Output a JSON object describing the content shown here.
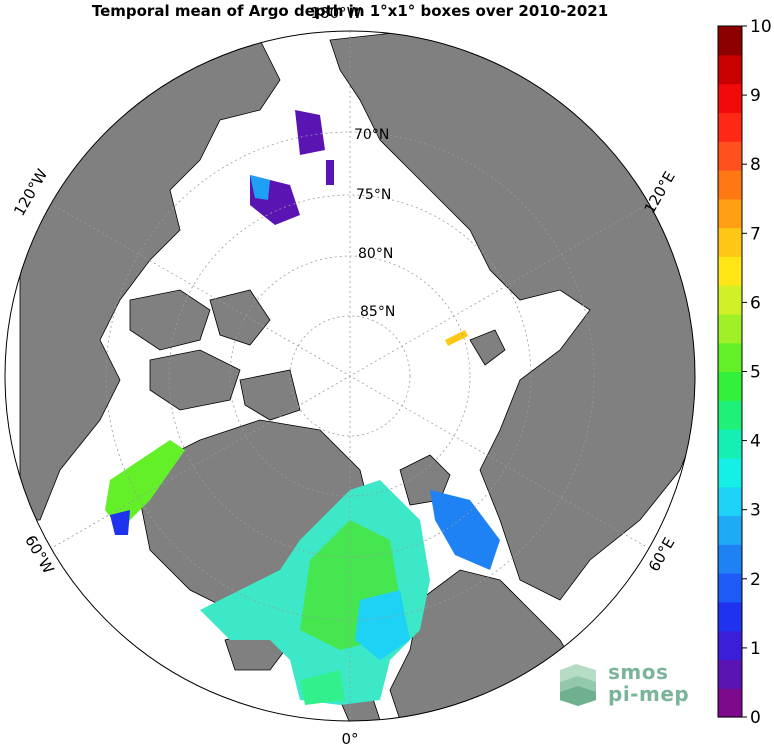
{
  "title": "Temporal mean of Argo depth in 1°x1° boxes over 2010-2021",
  "projection": "north-polar-stereographic",
  "meridian_labels": [
    {
      "id": "180w",
      "text": "180°W"
    },
    {
      "id": "120w",
      "text": "120°W"
    },
    {
      "id": "120e",
      "text": "120°E"
    },
    {
      "id": "60w",
      "text": "60°W"
    },
    {
      "id": "60e",
      "text": "60°E"
    },
    {
      "id": "0",
      "text": "0°"
    }
  ],
  "parallel_labels": [
    {
      "id": "70n",
      "text": "70°N"
    },
    {
      "id": "75n",
      "text": "75°N"
    },
    {
      "id": "80n",
      "text": "80°N"
    },
    {
      "id": "85n",
      "text": "85°N"
    }
  ],
  "colorbar": {
    "min": 0,
    "max": 10,
    "ticks": [
      "0",
      "1",
      "2",
      "3",
      "4",
      "5",
      "6",
      "7",
      "8",
      "9",
      "10"
    ],
    "colors": [
      "#7d0a8c",
      "#5a14b4",
      "#3a1ed8",
      "#1e32f0",
      "#1e5af5",
      "#1e82f5",
      "#1eaaf5",
      "#1ed2f5",
      "#14f0e6",
      "#14f0b4",
      "#1ef078",
      "#32f03c",
      "#64f028",
      "#a0f028",
      "#d2f028",
      "#ffe614",
      "#ffc814",
      "#ffa014",
      "#ff7814",
      "#ff501e",
      "#ff2814",
      "#f00a0a",
      "#c80000",
      "#8c0000"
    ]
  },
  "colors": {
    "ocean": "#ffffff",
    "land": "#808080",
    "coast": "#000000",
    "grid": "#9a9a9a"
  },
  "logo": {
    "line1": "smos",
    "line2": "pi-mep"
  }
}
